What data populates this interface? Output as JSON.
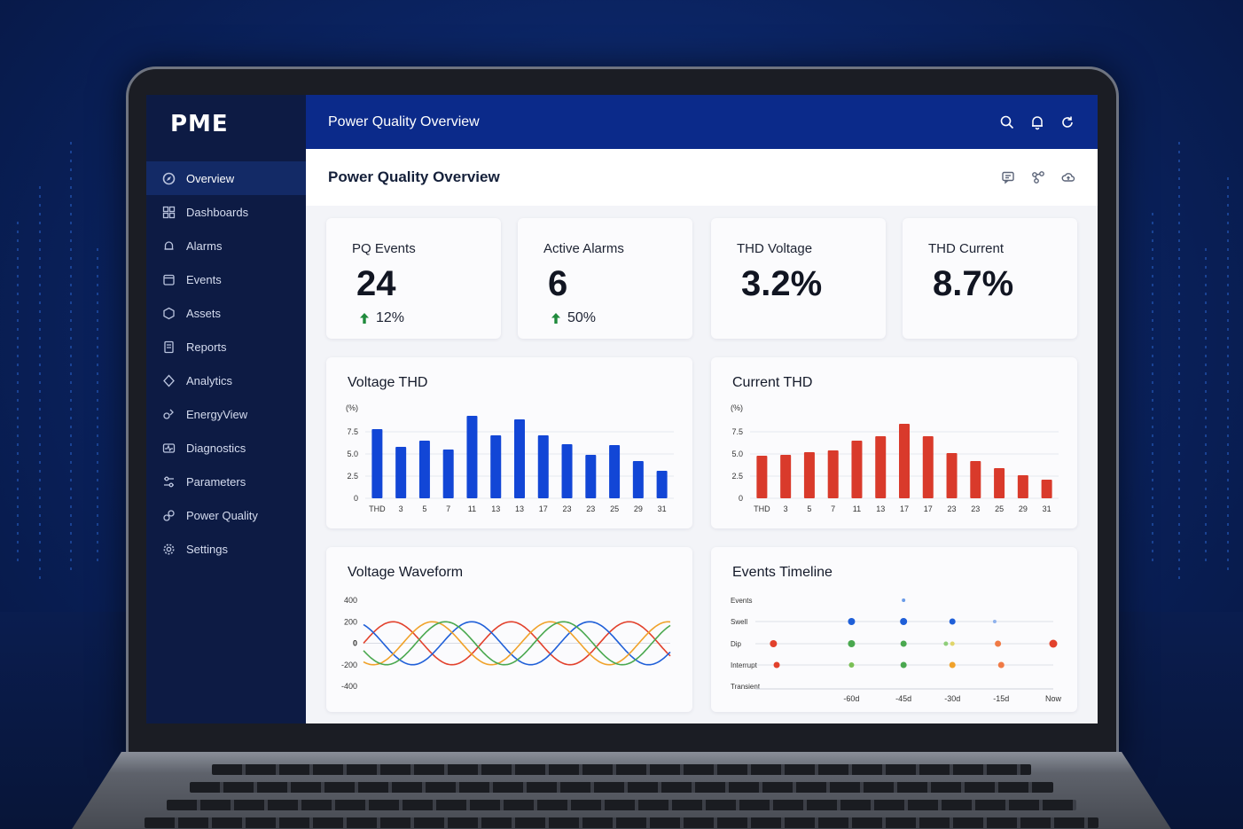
{
  "app": {
    "logo": "PME"
  },
  "topbar": {
    "title": "Power Quality Overview"
  },
  "sidebar": {
    "items": [
      {
        "label": "Overview",
        "icon": "compass-icon",
        "active": true
      },
      {
        "label": "Dashboards",
        "icon": "dashboard-icon"
      },
      {
        "label": "Alarms",
        "icon": "bell-icon"
      },
      {
        "label": "Events",
        "icon": "events-icon"
      },
      {
        "label": "Assets",
        "icon": "assets-icon"
      },
      {
        "label": "Reports",
        "icon": "reports-icon"
      },
      {
        "label": "Analytics",
        "icon": "analytics-icon"
      },
      {
        "label": "EnergyView",
        "icon": "energy-icon"
      },
      {
        "label": "Diagnostics",
        "icon": "diagnostics-icon"
      },
      {
        "label": "Parameters",
        "icon": "parameters-icon"
      },
      {
        "label": "Power Quality",
        "icon": "power-quality-icon"
      },
      {
        "label": "Settings",
        "icon": "gear-icon"
      }
    ]
  },
  "page": {
    "title": "Power Quality Overview"
  },
  "kpis": [
    {
      "label": "PQ Events",
      "value": "24",
      "trend": "12%"
    },
    {
      "label": "Active Alarms",
      "value": "6",
      "trend": "50%"
    },
    {
      "label": "THD Voltage",
      "value": "3.2%"
    },
    {
      "label": "THD Current",
      "value": "8.7%"
    }
  ],
  "colors": {
    "accent": "#0b2a8a",
    "sidebar": "#0d1b44",
    "voltage_bars": "#1246d6",
    "current_bars": "#d93a2b",
    "trend_up": "#1f8a3c"
  },
  "chart_data": [
    {
      "type": "bar",
      "title": "Voltage THD",
      "ylabel": "(%)",
      "categories": [
        "THD",
        "3",
        "5",
        "7",
        "11",
        "13",
        "13",
        "17",
        "23",
        "23",
        "25",
        "29",
        "31"
      ],
      "values": [
        7.8,
        5.8,
        6.5,
        5.5,
        9.3,
        7.1,
        8.9,
        7.1,
        6.1,
        4.9,
        6.0,
        4.2,
        3.1
      ],
      "yticks": [
        "0",
        "2.5",
        "5.0",
        "7.5"
      ],
      "ylim": [
        0,
        10
      ],
      "color": "#1246d6"
    },
    {
      "type": "bar",
      "title": "Current THD",
      "ylabel": "(%)",
      "categories": [
        "THD",
        "3",
        "5",
        "7",
        "11",
        "13",
        "17",
        "17",
        "23",
        "23",
        "25",
        "29",
        "31"
      ],
      "values": [
        4.8,
        4.9,
        5.2,
        5.4,
        6.5,
        7.0,
        8.4,
        7.0,
        5.1,
        4.2,
        3.4,
        2.6,
        2.1
      ],
      "yticks": [
        "0",
        "2.5",
        "5.0",
        "7.5"
      ],
      "ylim": [
        0,
        10
      ],
      "color": "#d93a2b"
    },
    {
      "type": "line",
      "title": "Voltage Waveform",
      "yticks": [
        "400",
        "200",
        "0",
        "-200",
        "-400"
      ],
      "ylim": [
        -400,
        400
      ],
      "series": [
        {
          "color": "#e2412c",
          "amplitude": 200,
          "phase_deg": 0
        },
        {
          "color": "#1f5fd8",
          "amplitude": 200,
          "phase_deg": 120
        },
        {
          "color": "#f0a22a",
          "amplitude": 200,
          "phase_deg": 240
        },
        {
          "color": "#4aa84f",
          "amplitude": 200,
          "phase_deg": 200
        }
      ]
    },
    {
      "type": "scatter",
      "title": "Events Timeline",
      "categories": [
        "Events",
        "Swell",
        "Dip",
        "Interrupt",
        "Transient"
      ],
      "xticks": [
        "-60d",
        "-45d",
        "-30d",
        "-15d",
        "Now"
      ],
      "points": [
        {
          "row": "Events",
          "t": -45,
          "color": "#6a9be8",
          "size": 2
        },
        {
          "row": "Swell",
          "t": -61,
          "color": "#1f5fd8",
          "size": 4
        },
        {
          "row": "Swell",
          "t": -45,
          "color": "#1f5fd8",
          "size": 4
        },
        {
          "row": "Swell",
          "t": -30,
          "color": "#1f5fd8",
          "size": 3.5
        },
        {
          "row": "Swell",
          "t": -17,
          "color": "#8fb2ec",
          "size": 2
        },
        {
          "row": "Dip",
          "t": -85,
          "color": "#e2412c",
          "size": 4
        },
        {
          "row": "Dip",
          "t": -61,
          "color": "#4aa84f",
          "size": 4
        },
        {
          "row": "Dip",
          "t": -45,
          "color": "#4aa84f",
          "size": 3.5
        },
        {
          "row": "Dip",
          "t": -32,
          "color": "#8fce7a",
          "size": 2.5
        },
        {
          "row": "Dip",
          "t": -30,
          "color": "#e0d56a",
          "size": 2.5
        },
        {
          "row": "Dip",
          "t": -16,
          "color": "#f07a45",
          "size": 3.5
        },
        {
          "row": "Dip",
          "t": 1,
          "color": "#e2412c",
          "size": 4.5
        },
        {
          "row": "Interrupt",
          "t": -84,
          "color": "#e2412c",
          "size": 3.5
        },
        {
          "row": "Interrupt",
          "t": -61,
          "color": "#7abf55",
          "size": 3
        },
        {
          "row": "Interrupt",
          "t": -45,
          "color": "#4aa84f",
          "size": 3.5
        },
        {
          "row": "Interrupt",
          "t": -30,
          "color": "#f0a22a",
          "size": 3.5
        },
        {
          "row": "Interrupt",
          "t": -15,
          "color": "#f07a45",
          "size": 3.5
        }
      ]
    }
  ]
}
